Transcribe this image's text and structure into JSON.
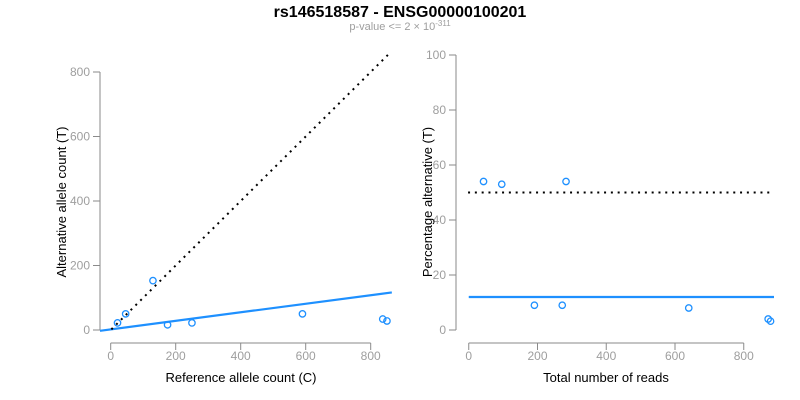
{
  "header": {
    "title": "rs146518587 - ENSG00000100201",
    "subtitle_base": "p-value <= 2 × 10",
    "subtitle_exponent": "-311"
  },
  "style": {
    "point_color": "#1E90FF",
    "fit_line_color": "#1E90FF",
    "reference_line_color": "#000000",
    "axis_color": "#8A8A8A",
    "tick_label_color": "#9E9E9E",
    "axis_title_color": "#000000",
    "subtitle_color": "#9E9E9E",
    "background_color": "#FFFFFF"
  },
  "chart_data": [
    {
      "type": "scatter",
      "name": "left-panel-allele-counts",
      "xlabel": "Reference allele count (C)",
      "ylabel": "Alternative allele count (T)",
      "xlim": [
        0,
        800
      ],
      "ylim": [
        0,
        800
      ],
      "xticks": [
        0,
        200,
        400,
        600,
        800
      ],
      "yticks": [
        0,
        200,
        400,
        600,
        800
      ],
      "grid": false,
      "legend": false,
      "points": [
        {
          "x": 21,
          "y": 22
        },
        {
          "x": 46,
          "y": 50
        },
        {
          "x": 130,
          "y": 153
        },
        {
          "x": 175,
          "y": 16
        },
        {
          "x": 250,
          "y": 22
        },
        {
          "x": 590,
          "y": 50
        },
        {
          "x": 837,
          "y": 34
        },
        {
          "x": 850,
          "y": 28
        }
      ],
      "lines": [
        {
          "name": "identity-line",
          "style": "dotted",
          "color": "#000000",
          "x1": 2,
          "y1": 2,
          "x2": 862,
          "y2": 862
        },
        {
          "name": "fit-line",
          "style": "solid",
          "color": "#1E90FF",
          "x1": -33,
          "y1": -2.5,
          "x2": 865,
          "y2": 116.5
        }
      ]
    },
    {
      "type": "scatter",
      "name": "right-panel-percentage",
      "xlabel": "Total number of reads",
      "ylabel": "Percentage alternative (T)",
      "xlim": [
        0,
        800
      ],
      "ylim": [
        0,
        100
      ],
      "xticks": [
        0,
        200,
        400,
        600,
        800
      ],
      "yticks": [
        0,
        20,
        40,
        60,
        80,
        100
      ],
      "grid": false,
      "legend": false,
      "points": [
        {
          "x": 43,
          "y": 54
        },
        {
          "x": 96,
          "y": 53
        },
        {
          "x": 283,
          "y": 54
        },
        {
          "x": 191,
          "y": 9
        },
        {
          "x": 272,
          "y": 9
        },
        {
          "x": 640,
          "y": 8
        },
        {
          "x": 871,
          "y": 4
        },
        {
          "x": 878,
          "y": 3.2
        }
      ],
      "lines": [
        {
          "name": "expected-50pct-line",
          "style": "dotted",
          "color": "#000000",
          "x1": -2,
          "y1": 50,
          "x2": 877,
          "y2": 50
        },
        {
          "name": "fit-line",
          "style": "solid",
          "color": "#1E90FF",
          "x1": 0,
          "y1": 12,
          "x2": 888,
          "y2": 12
        }
      ]
    }
  ]
}
